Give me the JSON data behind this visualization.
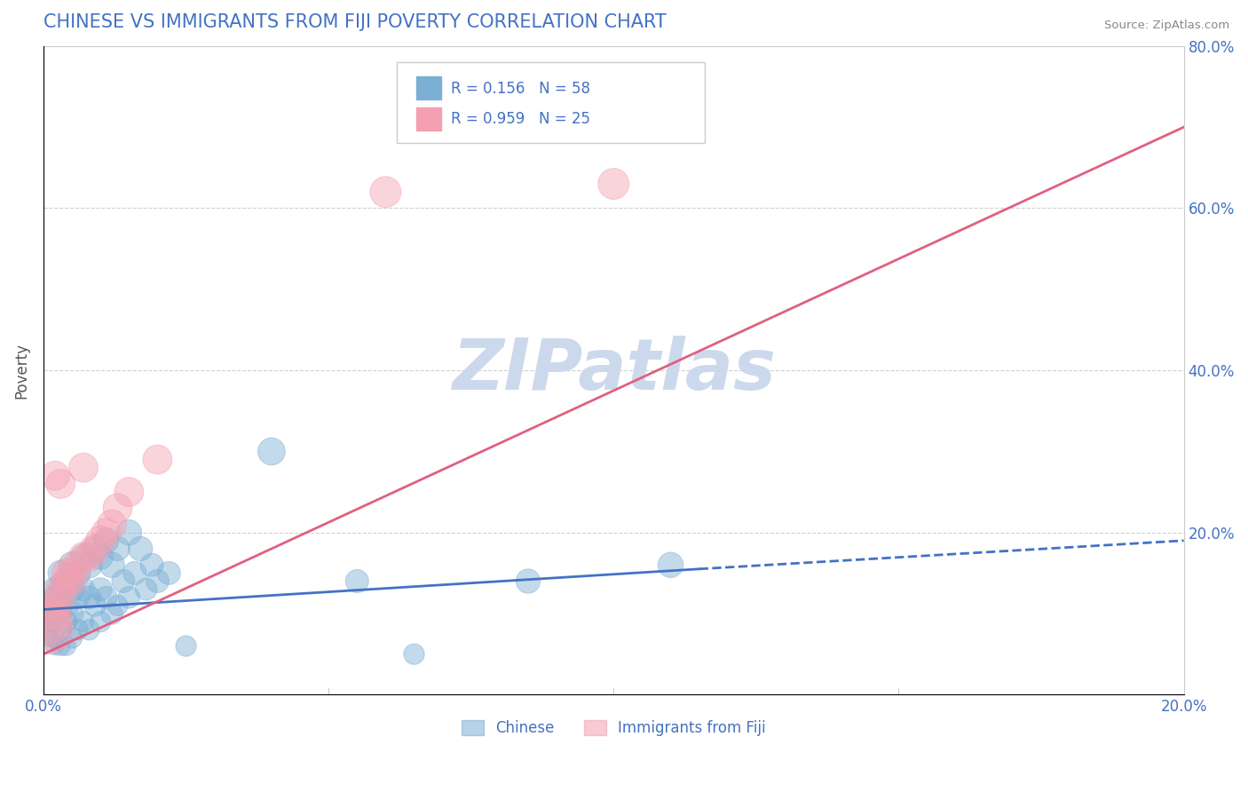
{
  "title": "CHINESE VS IMMIGRANTS FROM FIJI POVERTY CORRELATION CHART",
  "source": "Source: ZipAtlas.com",
  "ylabel": "Poverty",
  "xlim": [
    0.0,
    0.2
  ],
  "ylim": [
    0.0,
    0.8
  ],
  "xticks": [
    0.0,
    0.05,
    0.1,
    0.15,
    0.2
  ],
  "yticks": [
    0.0,
    0.2,
    0.4,
    0.6,
    0.8
  ],
  "xtick_labels": [
    "0.0%",
    "",
    "",
    "",
    "20.0%"
  ],
  "ytick_labels_right": [
    "",
    "20.0%",
    "40.0%",
    "60.0%",
    "80.0%"
  ],
  "title_color": "#4472c4",
  "title_fontsize": 15,
  "watermark": "ZIPatlas",
  "watermark_color": "#ccd9ec",
  "chinese_color": "#7bafd4",
  "fiji_color": "#f4a0b0",
  "chinese_line_color": "#4472c4",
  "fiji_line_color": "#e06080",
  "chinese_R": 0.156,
  "chinese_N": 58,
  "fiji_R": 0.959,
  "fiji_N": 25,
  "legend_label_chinese": "Chinese",
  "legend_label_fiji": "Immigrants from Fiji",
  "chinese_scatter_x": [
    0.001,
    0.001,
    0.001,
    0.001,
    0.002,
    0.002,
    0.002,
    0.002,
    0.002,
    0.002,
    0.003,
    0.003,
    0.003,
    0.003,
    0.003,
    0.004,
    0.004,
    0.004,
    0.004,
    0.005,
    0.005,
    0.005,
    0.005,
    0.006,
    0.006,
    0.006,
    0.007,
    0.007,
    0.007,
    0.008,
    0.008,
    0.008,
    0.009,
    0.009,
    0.01,
    0.01,
    0.01,
    0.011,
    0.011,
    0.012,
    0.012,
    0.013,
    0.013,
    0.014,
    0.015,
    0.015,
    0.016,
    0.017,
    0.018,
    0.019,
    0.02,
    0.022,
    0.025,
    0.04,
    0.055,
    0.065,
    0.085,
    0.11
  ],
  "chinese_scatter_y": [
    0.11,
    0.09,
    0.08,
    0.07,
    0.13,
    0.12,
    0.1,
    0.09,
    0.07,
    0.06,
    0.15,
    0.13,
    0.1,
    0.08,
    0.06,
    0.14,
    0.11,
    0.09,
    0.06,
    0.16,
    0.13,
    0.1,
    0.07,
    0.15,
    0.12,
    0.08,
    0.17,
    0.13,
    0.09,
    0.16,
    0.12,
    0.08,
    0.18,
    0.11,
    0.17,
    0.13,
    0.09,
    0.19,
    0.12,
    0.16,
    0.1,
    0.18,
    0.11,
    0.14,
    0.2,
    0.12,
    0.15,
    0.18,
    0.13,
    0.16,
    0.14,
    0.15,
    0.06,
    0.3,
    0.14,
    0.05,
    0.14,
    0.16
  ],
  "chinese_scatter_size": [
    50,
    40,
    35,
    30,
    55,
    50,
    45,
    40,
    35,
    30,
    60,
    55,
    50,
    45,
    35,
    60,
    55,
    45,
    35,
    65,
    55,
    50,
    40,
    60,
    50,
    40,
    60,
    50,
    40,
    65,
    50,
    40,
    60,
    45,
    60,
    50,
    40,
    60,
    45,
    60,
    45,
    55,
    40,
    50,
    60,
    45,
    50,
    55,
    45,
    50,
    50,
    50,
    40,
    70,
    50,
    40,
    55,
    60
  ],
  "fiji_scatter_x": [
    0.001,
    0.001,
    0.002,
    0.002,
    0.003,
    0.003,
    0.004,
    0.004,
    0.005,
    0.005,
    0.006,
    0.007,
    0.008,
    0.009,
    0.01,
    0.011,
    0.012,
    0.013,
    0.015,
    0.02,
    0.06,
    0.1,
    0.002,
    0.003,
    0.007
  ],
  "fiji_scatter_y": [
    0.08,
    0.09,
    0.1,
    0.11,
    0.12,
    0.13,
    0.14,
    0.15,
    0.14,
    0.15,
    0.16,
    0.17,
    0.17,
    0.18,
    0.19,
    0.2,
    0.21,
    0.23,
    0.25,
    0.29,
    0.62,
    0.63,
    0.27,
    0.26,
    0.28
  ],
  "fiji_scatter_size": [
    220,
    180,
    100,
    90,
    90,
    80,
    80,
    80,
    80,
    80,
    80,
    80,
    80,
    80,
    80,
    80,
    80,
    80,
    80,
    80,
    90,
    90,
    80,
    80,
    80
  ],
  "fiji_line_x0": 0.0,
  "fiji_line_y0": 0.05,
  "fiji_line_x1": 0.2,
  "fiji_line_y1": 0.7,
  "chinese_line_x0": 0.0,
  "chinese_line_y0": 0.105,
  "chinese_line_x1": 0.115,
  "chinese_line_x1_dashed": 0.2,
  "chinese_line_y1": 0.155,
  "chinese_line_y1_dashed": 0.19,
  "grid_color": "#d0d0d0",
  "background_color": "#ffffff",
  "axis_color": "#cccccc"
}
